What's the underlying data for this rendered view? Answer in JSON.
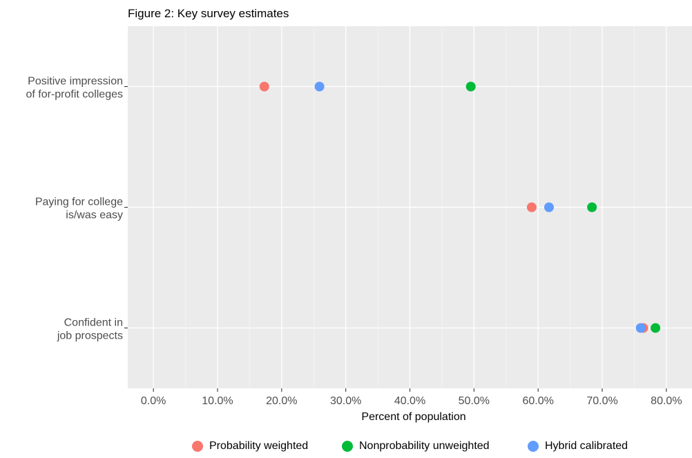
{
  "title": "Figure 2: Key survey estimates",
  "chart_data": {
    "type": "scatter",
    "title": "Figure 2: Key survey estimates",
    "xlabel": "Percent of population",
    "ylabel": "",
    "xlim": [
      -0.04,
      0.84
    ],
    "x_ticks": [
      0.0,
      0.1,
      0.2,
      0.3,
      0.4,
      0.5,
      0.6,
      0.7,
      0.8
    ],
    "x_tick_labels": [
      "0.0%",
      "10.0%",
      "20.0%",
      "30.0%",
      "40.0%",
      "50.0%",
      "60.0%",
      "70.0%",
      "80.0%"
    ],
    "categories": [
      [
        "Positive impression",
        "of for-profit colleges"
      ],
      [
        "Paying for college",
        "is/was easy"
      ],
      [
        "Confident in",
        "job prospects"
      ]
    ],
    "grid": true,
    "legend_position": "bottom",
    "series": [
      {
        "name": "Probability weighted",
        "color": "#F8766D",
        "values": [
          0.173,
          0.59,
          0.764
        ]
      },
      {
        "name": "Nonprobability unweighted",
        "color": "#00BA38",
        "values": [
          0.495,
          0.684,
          0.783
        ]
      },
      {
        "name": "Hybrid calibrated",
        "color": "#619CFF",
        "values": [
          0.259,
          0.617,
          0.76
        ]
      }
    ]
  }
}
